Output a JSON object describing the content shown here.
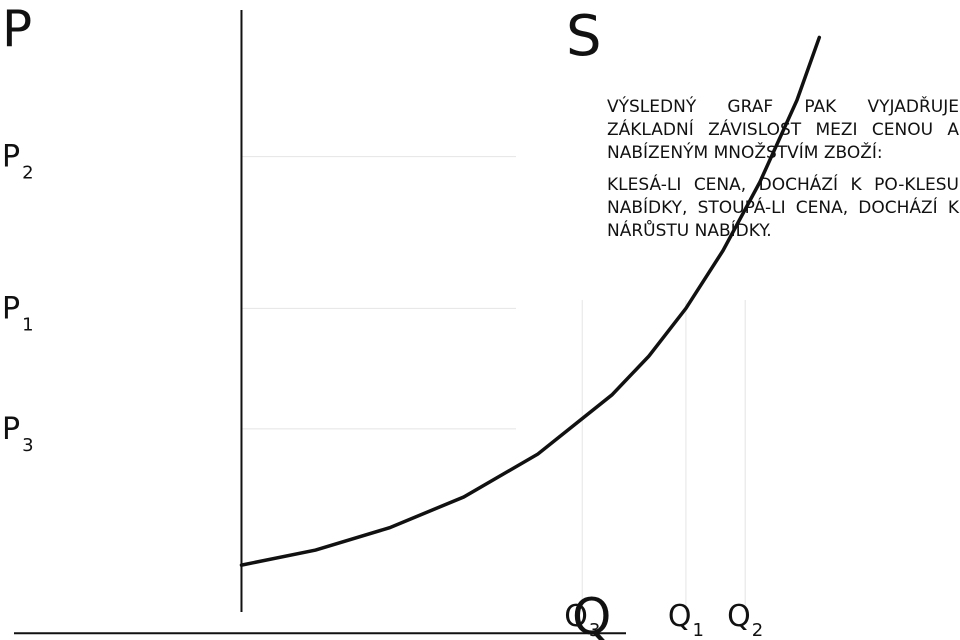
{
  "chart_data": {
    "type": "line",
    "title": "S",
    "xlabel": "Q",
    "ylabel": "P",
    "series": [
      {
        "name": "S",
        "x": [
          0.0,
          0.5,
          1.0,
          1.5,
          2.0,
          2.5,
          2.75,
          3.0,
          3.25,
          3.5,
          3.75,
          3.9
        ],
        "y": [
          1.0,
          1.22,
          1.55,
          2.0,
          2.63,
          3.5,
          4.07,
          4.77,
          5.62,
          6.63,
          7.83,
          8.75
        ]
      }
    ],
    "xlim": [
      -1.63,
      4.85
    ],
    "ylim": [
      -0.1,
      9.3
    ],
    "grid": false,
    "x_markers": [
      {
        "label": "Q",
        "sub": "3",
        "x": 2.3
      },
      {
        "label": "Q",
        "sub": "1",
        "x": 3.0
      },
      {
        "label": "Q",
        "sub": "2",
        "x": 3.4
      }
    ],
    "y_markers": [
      {
        "label": "P",
        "sub": "2",
        "y": 7.0
      },
      {
        "label": "P",
        "sub": "1",
        "y": 4.77
      },
      {
        "label": "P",
        "sub": "3",
        "y": 3.0
      }
    ],
    "annotations": [
      "VÝSLEDNÝ GRAF PAK VYJADŘUJE ZÁKLADNÍ ZÁVISLOST MEZI CENOU A NABÍZENÝM MNOŽSTVÍM ZBOŽÍ:",
      "KLESÁ-LI CENA, DOCHÁZÍ K PO-KLESU NABÍDKY, STOUPÁ-LI CENA, DOCHÁZÍ K NÁRŮSTU NABÍDKY."
    ]
  }
}
